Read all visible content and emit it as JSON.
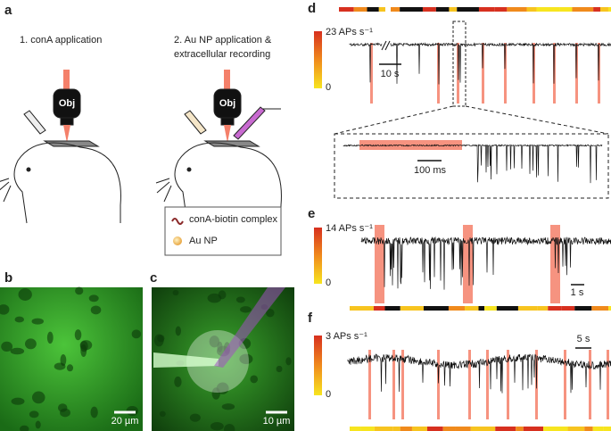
{
  "panels": {
    "a": {
      "label": "a",
      "step1": "1. conA application",
      "step2_line1": "2. Au NP application &",
      "step2_line2": "extracellular recording",
      "objective1": "Obj",
      "objective2": "Obj",
      "legend": [
        "conA-biotin complex",
        "Au NP"
      ]
    },
    "b": {
      "label": "b",
      "scale": "20 µm"
    },
    "c": {
      "label": "c",
      "scale": "10 µm"
    },
    "d": {
      "label": "d",
      "colorbar_max": "23 APs s⁻¹",
      "colorbar_min": "0",
      "scale": "10 s",
      "inset_scale": "100 ms"
    },
    "e": {
      "label": "e",
      "colorbar_max": "14 APs s⁻¹",
      "colorbar_min": "0",
      "scale": "1 s"
    },
    "f": {
      "label": "f",
      "colorbar_max": "3 APs s⁻¹",
      "colorbar_min": "0",
      "scale": "5 s"
    }
  }
}
